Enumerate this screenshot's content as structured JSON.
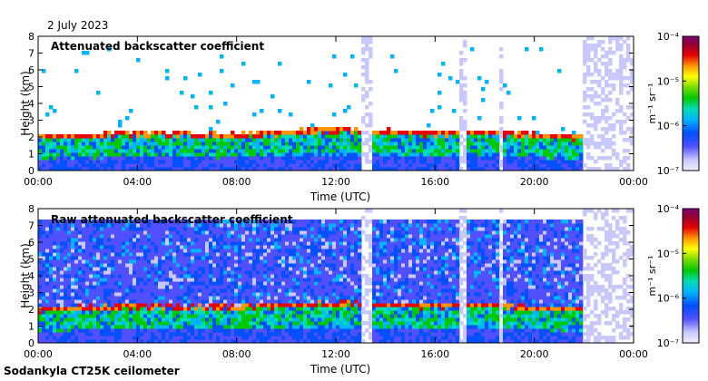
{
  "date": "2 July 2023",
  "footer": "Sodankyla CT25K ceilometer",
  "colorbar": {
    "unit_label": "m⁻¹ sr⁻¹",
    "ticks": [
      "10⁻⁴",
      "10⁻⁵",
      "10⁻⁶",
      "10⁻⁷"
    ],
    "colors": [
      "#f0f0ff",
      "#c8c8ff",
      "#5050ff",
      "#0050ff",
      "#00b4ff",
      "#00dcb4",
      "#00c800",
      "#78dc00",
      "#ffff00",
      "#ff9600",
      "#e60000",
      "#960032",
      "#780078"
    ]
  },
  "chart_data": [
    {
      "type": "heatmap",
      "title": "Attenuated backscatter coefficient",
      "xlabel": "Time (UTC)",
      "ylabel": "Height (km)",
      "xlim": [
        0,
        24
      ],
      "ylim": [
        0,
        8
      ],
      "xticks": [
        "00:00",
        "04:00",
        "08:00",
        "12:00",
        "16:00",
        "20:00",
        "00:00"
      ],
      "yticks": [
        "0",
        "1",
        "2",
        "3",
        "4",
        "5",
        "6",
        "7",
        "8"
      ],
      "layer_height_km": [
        2.0,
        2.2,
        2.1,
        2.4,
        2.2,
        2.3,
        2.1,
        2.0
      ],
      "layer_time_h": [
        0,
        4,
        8,
        12,
        16,
        18,
        20,
        22
      ],
      "data_gaps_h": [
        [
          13.0,
          13.4
        ],
        [
          17.0,
          17.2
        ],
        [
          18.6,
          18.8
        ],
        [
          22.0,
          24.0
        ]
      ]
    },
    {
      "type": "heatmap",
      "title": "Raw attenuated backscatter coefficient",
      "xlabel": "Time (UTC)",
      "ylabel": "Height (km)",
      "xlim": [
        0,
        24
      ],
      "ylim": [
        0,
        8
      ],
      "xticks": [
        "00:00",
        "04:00",
        "08:00",
        "12:00",
        "16:00",
        "20:00",
        "00:00"
      ],
      "yticks": [
        "0",
        "1",
        "2",
        "3",
        "4",
        "5",
        "6",
        "7",
        "8"
      ],
      "layer_height_km": [
        2.0,
        2.2,
        2.1,
        2.4,
        2.2,
        2.3,
        2.1,
        2.0
      ],
      "layer_time_h": [
        0,
        4,
        8,
        12,
        16,
        18,
        20,
        22
      ],
      "data_gaps_h": [
        [
          13.0,
          13.4
        ],
        [
          17.0,
          17.2
        ],
        [
          18.6,
          18.8
        ],
        [
          22.0,
          24.0
        ]
      ]
    }
  ]
}
